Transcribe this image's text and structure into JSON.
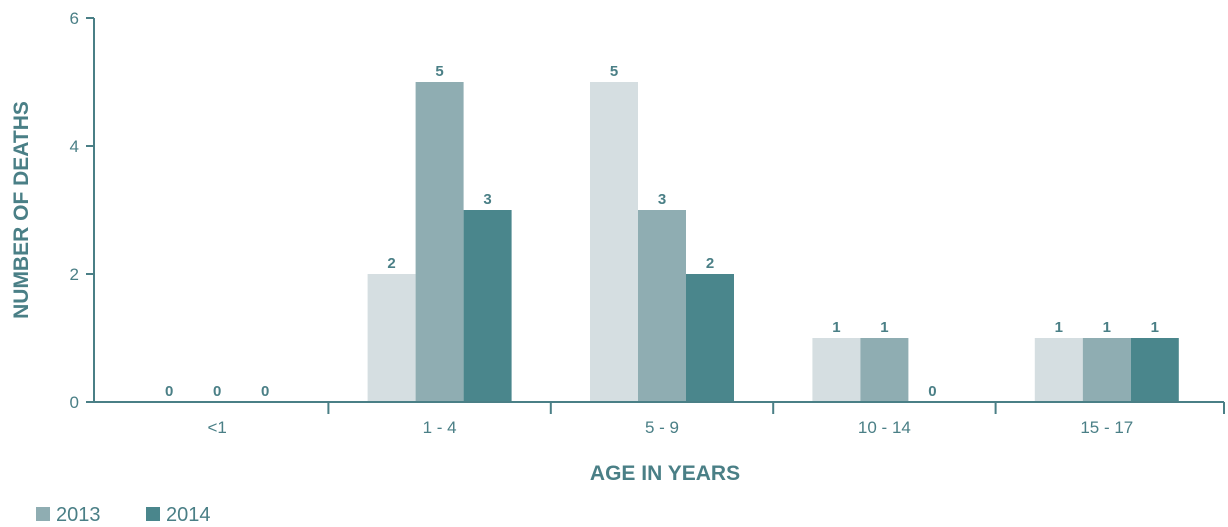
{
  "chart_data": {
    "type": "bar",
    "xlabel": "AGE IN YEARS",
    "ylabel": "NUMBER OF DEATHS",
    "ylim": [
      0,
      6
    ],
    "yticks": [
      0,
      2,
      4,
      6
    ],
    "grid": false,
    "legend_placement": "bottom-left",
    "categories": [
      "<1",
      "1 - 4",
      "5 - 9",
      "10 - 14",
      "15 - 17"
    ],
    "series": [
      {
        "values": [
          0,
          2,
          5,
          1,
          1
        ],
        "color": "#d5dee1"
      },
      {
        "name": "2013",
        "values": [
          0,
          5,
          3,
          1,
          1
        ],
        "color": "#8fadb2"
      },
      {
        "name": "2014",
        "values": [
          0,
          3,
          2,
          0,
          1
        ],
        "color": "#4a868c"
      }
    ],
    "axis_color": "#4a7f86"
  }
}
